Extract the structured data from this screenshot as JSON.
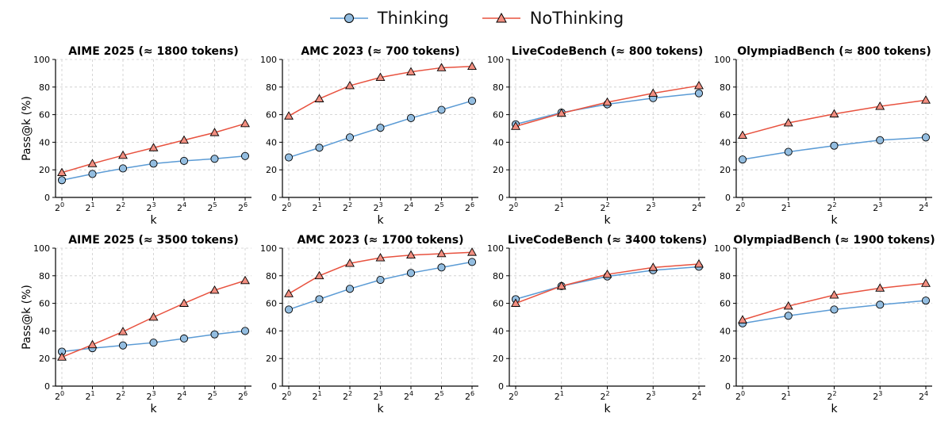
{
  "legend": {
    "thinking_label": "Thinking",
    "nothinking_label": "NoThinking"
  },
  "colors": {
    "thinking_line": "#5b9bd5",
    "thinking_fill": "#93bde0",
    "nothinking_line": "#e8523f",
    "nothinking_fill": "#f28e80",
    "marker_edge": "#000000",
    "grid": "#cccccc"
  },
  "chart_data": [
    {
      "type": "line",
      "title": "AIME 2025 (≈ 1800 tokens)",
      "xlabel": "k",
      "ylabel": "Pass@k (%)",
      "ylim": [
        0,
        100
      ],
      "yticks": [
        "0",
        "20",
        "40",
        "60",
        "80",
        "100"
      ],
      "x_exponents": [
        0,
        1,
        2,
        3,
        4,
        5,
        6
      ],
      "x_tick_base": "2",
      "series": [
        {
          "name": "Thinking",
          "values": [
            12.5,
            17,
            21,
            24.5,
            26.5,
            28,
            30
          ]
        },
        {
          "name": "NoThinking",
          "values": [
            18,
            24.5,
            30.5,
            36,
            41.5,
            47,
            53.5
          ]
        }
      ]
    },
    {
      "type": "line",
      "title": "AMC 2023 (≈ 700 tokens)",
      "xlabel": "k",
      "ylabel": "",
      "ylim": [
        0,
        100
      ],
      "yticks": [
        "0",
        "20",
        "40",
        "60",
        "80",
        "100"
      ],
      "x_exponents": [
        0,
        1,
        2,
        3,
        4,
        5,
        6
      ],
      "x_tick_base": "2",
      "series": [
        {
          "name": "Thinking",
          "values": [
            29,
            36,
            43.5,
            50.5,
            57.5,
            63.5,
            70
          ]
        },
        {
          "name": "NoThinking",
          "values": [
            59,
            71.5,
            81,
            87,
            91,
            94,
            95
          ]
        }
      ]
    },
    {
      "type": "line",
      "title": "LiveCodeBench (≈ 800 tokens)",
      "xlabel": "k",
      "ylabel": "",
      "ylim": [
        0,
        100
      ],
      "yticks": [
        "0",
        "20",
        "40",
        "60",
        "80",
        "100"
      ],
      "x_exponents": [
        0,
        1,
        2,
        3,
        4
      ],
      "x_tick_base": "2",
      "series": [
        {
          "name": "Thinking",
          "values": [
            53,
            61.5,
            67.5,
            72,
            75.5
          ]
        },
        {
          "name": "NoThinking",
          "values": [
            51.5,
            61,
            69,
            75.5,
            81
          ]
        }
      ]
    },
    {
      "type": "line",
      "title": "OlympiadBench (≈ 800 tokens)",
      "xlabel": "k",
      "ylabel": "",
      "ylim": [
        0,
        100
      ],
      "yticks": [
        "0",
        "20",
        "40",
        "60",
        "80",
        "100"
      ],
      "x_exponents": [
        0,
        1,
        2,
        3,
        4
      ],
      "x_tick_base": "2",
      "series": [
        {
          "name": "Thinking",
          "values": [
            27.5,
            33,
            37.5,
            41.5,
            43.5
          ]
        },
        {
          "name": "NoThinking",
          "values": [
            45,
            54,
            60.5,
            66,
            70.5
          ]
        }
      ]
    },
    {
      "type": "line",
      "title": "AIME 2025 (≈ 3500 tokens)",
      "xlabel": "k",
      "ylabel": "Pass@k (%)",
      "ylim": [
        0,
        100
      ],
      "yticks": [
        "0",
        "20",
        "40",
        "60",
        "80",
        "100"
      ],
      "x_exponents": [
        0,
        1,
        2,
        3,
        4,
        5,
        6
      ],
      "x_tick_base": "2",
      "series": [
        {
          "name": "Thinking",
          "values": [
            25,
            27.5,
            29.5,
            31.5,
            34.5,
            37.5,
            40
          ]
        },
        {
          "name": "NoThinking",
          "values": [
            21,
            30,
            39.5,
            50,
            60,
            69.5,
            76.5
          ]
        }
      ]
    },
    {
      "type": "line",
      "title": "AMC 2023 (≈ 1700 tokens)",
      "xlabel": "k",
      "ylabel": "",
      "ylim": [
        0,
        100
      ],
      "yticks": [
        "0",
        "20",
        "40",
        "60",
        "80",
        "100"
      ],
      "x_exponents": [
        0,
        1,
        2,
        3,
        4,
        5,
        6
      ],
      "x_tick_base": "2",
      "series": [
        {
          "name": "Thinking",
          "values": [
            55.5,
            63,
            70.5,
            77,
            82,
            86,
            90
          ]
        },
        {
          "name": "NoThinking",
          "values": [
            67,
            80,
            89,
            93,
            95,
            96,
            97
          ]
        }
      ]
    },
    {
      "type": "line",
      "title": "LiveCodeBench (≈ 3400 tokens)",
      "xlabel": "k",
      "ylabel": "",
      "ylim": [
        0,
        100
      ],
      "yticks": [
        "0",
        "20",
        "40",
        "60",
        "80",
        "100"
      ],
      "x_exponents": [
        0,
        1,
        2,
        3,
        4
      ],
      "x_tick_base": "2",
      "series": [
        {
          "name": "Thinking",
          "values": [
            63,
            72.5,
            79.5,
            84,
            86.5
          ]
        },
        {
          "name": "NoThinking",
          "values": [
            60,
            72.5,
            81,
            86,
            88.5
          ]
        }
      ]
    },
    {
      "type": "line",
      "title": "OlympiadBench (≈ 1900 tokens)",
      "xlabel": "k",
      "ylabel": "",
      "ylim": [
        0,
        100
      ],
      "yticks": [
        "0",
        "20",
        "40",
        "60",
        "80",
        "100"
      ],
      "x_exponents": [
        0,
        1,
        2,
        3,
        4
      ],
      "x_tick_base": "2",
      "series": [
        {
          "name": "Thinking",
          "values": [
            45.5,
            51,
            55.5,
            59,
            62
          ]
        },
        {
          "name": "NoThinking",
          "values": [
            48,
            58,
            66,
            71,
            74.5
          ]
        }
      ]
    }
  ]
}
